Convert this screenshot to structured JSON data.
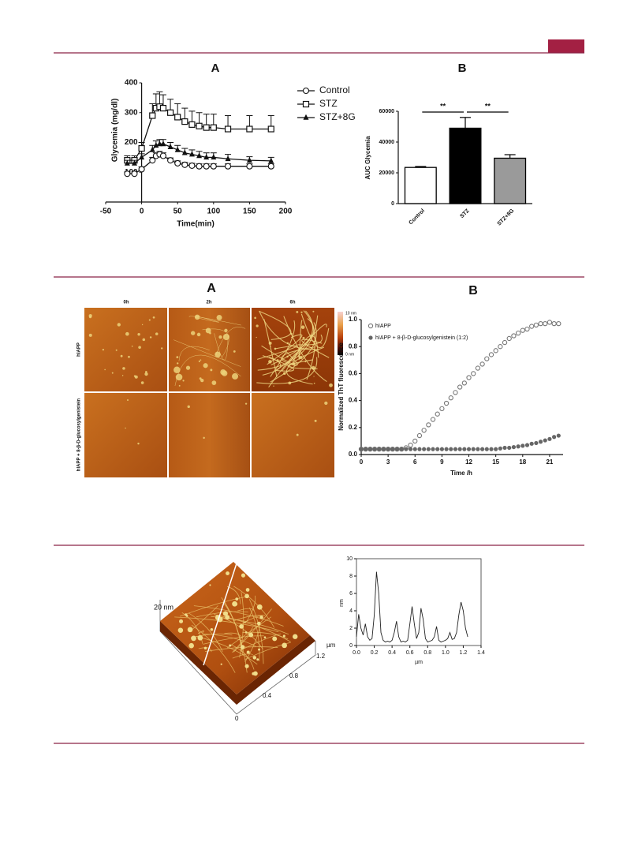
{
  "chart_data": [
    {
      "type": "line",
      "title": "A",
      "x_label": "Time(min)",
      "y_label": "Glycemia (mg/dl)",
      "x": [
        -20,
        -10,
        0,
        15,
        20,
        25,
        30,
        40,
        50,
        60,
        70,
        80,
        90,
        100,
        120,
        150,
        180
      ],
      "xlim": [
        -50,
        200
      ],
      "xticks": [
        -50,
        0,
        50,
        100,
        150,
        200
      ],
      "ylim": [
        0,
        400
      ],
      "yticks": [
        100,
        200,
        300,
        400
      ],
      "legend": "right",
      "series": [
        {
          "name": "Control",
          "marker": "circle",
          "color": "#111111",
          "values": [
            95,
            95,
            110,
            140,
            155,
            160,
            155,
            140,
            130,
            125,
            122,
            120,
            120,
            120,
            120,
            120,
            120
          ],
          "errors": [
            6,
            6,
            8,
            10,
            10,
            10,
            10,
            8,
            8,
            8,
            8,
            8,
            8,
            8,
            8,
            8,
            8
          ]
        },
        {
          "name": "STZ",
          "marker": "square",
          "color": "#111111",
          "values": [
            140,
            140,
            180,
            290,
            315,
            320,
            315,
            300,
            285,
            270,
            260,
            255,
            250,
            250,
            245,
            245,
            245
          ],
          "errors": [
            15,
            15,
            20,
            40,
            48,
            50,
            45,
            45,
            45,
            45,
            45,
            45,
            45,
            45,
            45,
            45,
            45
          ]
        },
        {
          "name": "STZ+8G",
          "marker": "triangle",
          "color": "#111111",
          "values": [
            130,
            130,
            150,
            175,
            190,
            195,
            195,
            185,
            175,
            165,
            160,
            155,
            150,
            150,
            145,
            140,
            138
          ],
          "errors": [
            10,
            10,
            12,
            15,
            15,
            15,
            15,
            15,
            15,
            15,
            15,
            15,
            15,
            15,
            15,
            12,
            12
          ]
        }
      ]
    },
    {
      "type": "bar",
      "title": "B",
      "y_label": "AUC Glycemia",
      "categories": [
        "Control",
        "STZ",
        "STZ+8G"
      ],
      "values": [
        23500,
        49000,
        29500
      ],
      "errors": [
        600,
        7000,
        2300
      ],
      "colors": [
        "#ffffff",
        "#000000",
        "#9a9a9a"
      ],
      "ylim": [
        0,
        60000
      ],
      "yticks": [
        0,
        20000,
        40000,
        60000
      ],
      "annotations": [
        "**",
        "**"
      ]
    },
    {
      "type": "scatter",
      "title": "B",
      "x_label": "Time /h",
      "y_label": "Normalized ThT fluorescence",
      "x": [
        0,
        0.5,
        1,
        1.5,
        2,
        2.5,
        3,
        3.5,
        4,
        4.5,
        5,
        5.5,
        6,
        6.5,
        7,
        7.5,
        8,
        8.5,
        9,
        9.5,
        10,
        10.5,
        11,
        11.5,
        12,
        12.5,
        13,
        13.5,
        14,
        14.5,
        15,
        15.5,
        16,
        16.5,
        17,
        17.5,
        18,
        18.5,
        19,
        19.5,
        20,
        20.5,
        21,
        21.5,
        22
      ],
      "xlim": [
        0,
        22.5
      ],
      "xticks": [
        0,
        3,
        6,
        9,
        12,
        15,
        18,
        21
      ],
      "ylim": [
        0,
        1
      ],
      "yticks": [
        {
          "value": 0,
          "label": "0.0"
        },
        0.2,
        0.4,
        0.6,
        0.8,
        {
          "value": 1,
          "label": "1.0"
        }
      ],
      "legend": "upper left",
      "series": [
        {
          "name": "hIAPP",
          "marker": "open-circle",
          "color": "#777777",
          "values": [
            0.04,
            0.04,
            0.04,
            0.04,
            0.04,
            0.04,
            0.04,
            0.04,
            0.04,
            0.04,
            0.05,
            0.07,
            0.1,
            0.14,
            0.18,
            0.22,
            0.26,
            0.3,
            0.34,
            0.38,
            0.42,
            0.46,
            0.5,
            0.53,
            0.57,
            0.6,
            0.64,
            0.67,
            0.71,
            0.74,
            0.77,
            0.8,
            0.83,
            0.86,
            0.88,
            0.9,
            0.92,
            0.93,
            0.95,
            0.96,
            0.97,
            0.97,
            0.98,
            0.97,
            0.97
          ]
        },
        {
          "name": "hIAPP + 8-β-D-glucosylgenistein (1:2)",
          "marker": "filled-circle",
          "color": "#666666",
          "values": [
            0.04,
            0.04,
            0.04,
            0.04,
            0.04,
            0.04,
            0.04,
            0.04,
            0.04,
            0.04,
            0.04,
            0.04,
            0.04,
            0.04,
            0.04,
            0.04,
            0.04,
            0.04,
            0.04,
            0.04,
            0.04,
            0.04,
            0.04,
            0.04,
            0.04,
            0.04,
            0.04,
            0.04,
            0.04,
            0.04,
            0.04,
            0.045,
            0.05,
            0.05,
            0.055,
            0.06,
            0.065,
            0.07,
            0.08,
            0.085,
            0.095,
            0.105,
            0.115,
            0.13,
            0.14
          ]
        }
      ]
    },
    {
      "type": "line",
      "x_label": "µm",
      "y_label": "nm",
      "color": "#222222",
      "x": [
        0,
        0.025,
        0.05,
        0.075,
        0.1,
        0.125,
        0.15,
        0.175,
        0.2,
        0.225,
        0.25,
        0.275,
        0.3,
        0.325,
        0.35,
        0.375,
        0.4,
        0.425,
        0.45,
        0.475,
        0.5,
        0.525,
        0.55,
        0.575,
        0.6,
        0.625,
        0.65,
        0.675,
        0.7,
        0.725,
        0.75,
        0.775,
        0.8,
        0.825,
        0.85,
        0.875,
        0.9,
        0.925,
        0.95,
        0.975,
        1,
        1.025,
        1.05,
        1.075,
        1.1,
        1.125,
        1.15,
        1.175,
        1.2,
        1.225,
        1.25
      ],
      "values": [
        1.0,
        3.6,
        2.0,
        1.2,
        2.5,
        1.0,
        0.6,
        0.8,
        3.5,
        8.5,
        6.0,
        1.5,
        0.6,
        0.4,
        0.5,
        0.4,
        0.6,
        1.5,
        2.8,
        1.0,
        0.4,
        0.5,
        0.4,
        0.6,
        2.5,
        4.5,
        2.5,
        0.8,
        1.5,
        4.3,
        3.0,
        0.8,
        0.4,
        0.5,
        0.6,
        1.0,
        2.2,
        0.6,
        0.4,
        0.5,
        0.6,
        0.8,
        1.5,
        0.7,
        0.8,
        1.5,
        3.5,
        5.0,
        4.0,
        2.0,
        1.0
      ],
      "xlim": [
        0,
        1.4
      ],
      "xticks": [
        {
          "value": 0,
          "label": "0.0"
        },
        0.2,
        0.4,
        0.6,
        0.8,
        {
          "value": 1,
          "label": "1.0"
        },
        1.2,
        1.4
      ],
      "ylim": [
        0,
        10
      ],
      "yticks": [
        0,
        2,
        4,
        6,
        8,
        10
      ],
      "frame": true
    }
  ],
  "afm_figure": {
    "title": "A",
    "columns": [
      "0h",
      "2h",
      "6h"
    ],
    "rows": [
      "hIAPP",
      "hIAPP + 8-β-D-glucosylgenistein"
    ],
    "scale": [
      "10 nm",
      "0 nm"
    ]
  },
  "surface_figure": {
    "height": "20 nm",
    "axis_unit": "µm",
    "axis_ticks": [
      "1.2",
      "0.8",
      "0.4",
      "0"
    ]
  }
}
